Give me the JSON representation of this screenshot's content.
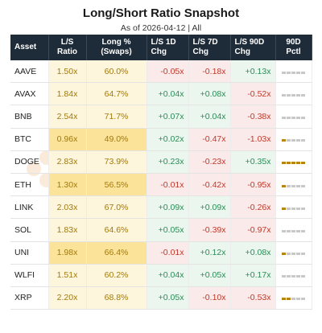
{
  "title": "Long/Short Ratio Snapshot",
  "subtitle": "As of 2026-04-12 | All",
  "watermark": "amberdata",
  "columns": [
    "Asset",
    "L/S\nRatio",
    "Long %\n(Swaps)",
    "L/S 1D\nChg",
    "L/S 7D\nChg",
    "L/S 90D\nChg",
    "90D\nPctl"
  ],
  "colors": {
    "header": "#1e2b38",
    "pos_text": "#2e8b57",
    "neg_text": "#c0392b",
    "pos_bg": "#eaf6ee",
    "neg_bg": "#fbeaea",
    "low_ratio_bg": "#fdf6dc",
    "high_ratio_bg": "#fbe39a",
    "pctl_fill": "#b8860b",
    "pctl_empty": "#c8c8c8"
  },
  "chart_data": {
    "type": "table",
    "title": "Long/Short Ratio Snapshot",
    "subtitle": "As of 2026-04-12 | All",
    "rows": [
      {
        "asset": "AAVE",
        "ratio": "1.50x",
        "long_pct": "60.0%",
        "chg_1d": "-0.05x",
        "chg_7d": "-0.18x",
        "chg_90d": "+0.13x",
        "pctl": 0.0,
        "highlight": false
      },
      {
        "asset": "AVAX",
        "ratio": "1.84x",
        "long_pct": "64.7%",
        "chg_1d": "+0.04x",
        "chg_7d": "+0.08x",
        "chg_90d": "-0.52x",
        "pctl": 0.0,
        "highlight": false
      },
      {
        "asset": "BNB",
        "ratio": "2.54x",
        "long_pct": "71.7%",
        "chg_1d": "+0.07x",
        "chg_7d": "+0.04x",
        "chg_90d": "-0.38x",
        "pctl": 0.0,
        "highlight": false
      },
      {
        "asset": "BTC",
        "ratio": "0.96x",
        "long_pct": "49.0%",
        "chg_1d": "+0.02x",
        "chg_7d": "-0.47x",
        "chg_90d": "-1.03x",
        "pctl": 0.2,
        "highlight": true
      },
      {
        "asset": "DOGE",
        "ratio": "2.83x",
        "long_pct": "73.9%",
        "chg_1d": "+0.23x",
        "chg_7d": "-0.23x",
        "chg_90d": "+0.35x",
        "pctl": 1.0,
        "highlight": false
      },
      {
        "asset": "ETH",
        "ratio": "1.30x",
        "long_pct": "56.5%",
        "chg_1d": "-0.01x",
        "chg_7d": "-0.42x",
        "chg_90d": "-0.95x",
        "pctl": 0.2,
        "highlight": true
      },
      {
        "asset": "LINK",
        "ratio": "2.03x",
        "long_pct": "67.0%",
        "chg_1d": "+0.09x",
        "chg_7d": "+0.09x",
        "chg_90d": "-0.26x",
        "pctl": 0.2,
        "highlight": false
      },
      {
        "asset": "SOL",
        "ratio": "1.83x",
        "long_pct": "64.6%",
        "chg_1d": "+0.05x",
        "chg_7d": "-0.39x",
        "chg_90d": "-0.97x",
        "pctl": 0.0,
        "highlight": false
      },
      {
        "asset": "UNI",
        "ratio": "1.98x",
        "long_pct": "66.4%",
        "chg_1d": "-0.01x",
        "chg_7d": "+0.12x",
        "chg_90d": "+0.08x",
        "pctl": 0.2,
        "highlight": true
      },
      {
        "asset": "WLFI",
        "ratio": "1.51x",
        "long_pct": "60.2%",
        "chg_1d": "+0.04x",
        "chg_7d": "+0.05x",
        "chg_90d": "+0.17x",
        "pctl": 0.0,
        "highlight": false
      },
      {
        "asset": "XRP",
        "ratio": "2.20x",
        "long_pct": "68.8%",
        "chg_1d": "+0.05x",
        "chg_7d": "-0.10x",
        "chg_90d": "-0.53x",
        "pctl": 0.4,
        "highlight": false
      }
    ]
  }
}
